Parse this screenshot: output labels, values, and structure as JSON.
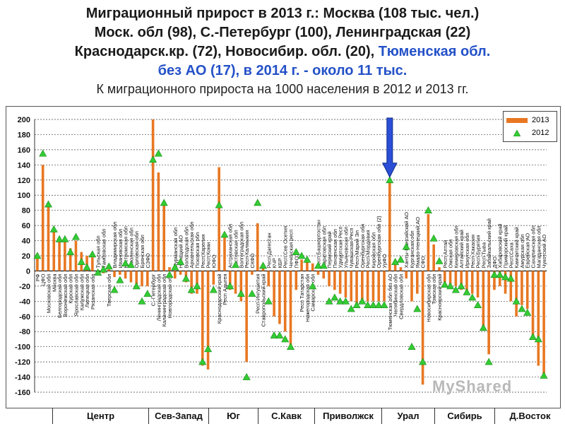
{
  "title": {
    "line1": "Миграционный прирост в 2013 г.: Москва (108 тыс. чел.)",
    "line2": "Моск. обл (98), С.-Петербург (100), Ленинградская (22)",
    "line3_black": "Краснодарск.кр. (72), Новосибир. обл. (20), ",
    "line3_blue": "Тюменская обл.",
    "line4_blue": "без АО (17), в 2014 г. - около 11 тыс.",
    "subtitle": "К миграционного прироста на 1000 населения в 2012 и 2013 гг."
  },
  "legend": {
    "series2013": "2013",
    "series2012": "2012"
  },
  "regions": [
    "Центр",
    "Сев-Запад",
    "Юг",
    "С.Кавк",
    "Приволжск",
    "Урал",
    "Сибирь",
    "Д.Восток"
  ],
  "watermark": "MyShared",
  "colors": {
    "bar": "#E87722",
    "marker": "#33CC33",
    "arrow": "#2A4FD6"
  },
  "chart_data": {
    "type": "bar",
    "ylim": [
      -160,
      200
    ],
    "yticks": [
      200,
      180,
      160,
      140,
      120,
      100,
      80,
      60,
      40,
      20,
      0,
      -20,
      -40,
      -60,
      -80,
      -100,
      -120,
      -140,
      -160
    ],
    "categories": [
      "РФ",
      "ЦФО",
      "Московская обл",
      "Москва",
      "Белгородская обл",
      "Воронежская обл",
      "Курская обл",
      "Ярославская обл",
      "Калужская обл",
      "Липецкая обл",
      "Рязанская обл",
      "Тульская обл",
      "Тамбовская обл",
      "Тверская обл",
      "Владимирская обл",
      "Ивановская обл",
      "Костромская обл",
      "Смоленская обл",
      "Орловская обл",
      "Брянская обл",
      "СЗФО",
      "С.-Петербург",
      "Ленинградская обл",
      "Калининградская обл",
      "Новгородская обл",
      "Мурманская обл",
      "Ненецкий АО",
      "Вологодская обл",
      "Архангельская обл",
      "Псковская обл",
      "Респ Карелия",
      "Респ Коми",
      "ЮФО",
      "Краснодарский край",
      "Респ Адыгея",
      "Астраханская обл",
      "Ростовская обл",
      "Волгоградская обл",
      "Респ Калмыкия",
      "СКФО",
      "Респ Ингушетия",
      "Ставропольский край",
      "Респ Дагестан",
      "КЧР",
      "КБР",
      "Респ Сев Осетия",
      "Чеченская респ",
      "ПФО",
      "Респ Татарстан",
      "Нижегородская обл",
      "Самарская обл",
      "Респ Башкортостан",
      "Саратовская обл",
      "Пермский край",
      "Пензенская обл",
      "Удмуртская Респ",
      "Ульяновская обл",
      "Чувашская Респ",
      "Респ Марий Эл",
      "Оренбургская обл",
      "Респ Мордовия",
      "Кировская обл",
      "Оренбургская обл (2)",
      "УрФО",
      "Тюменская обл без АО",
      "Челябинская обл",
      "Свердловская обл",
      "Ханты-Мансийский АО",
      "Курганская обл",
      "Ямало-Ненецкий АО",
      "СФО",
      "Новосибирская обл",
      "Томская обл",
      "Красноярский край",
      "Респ Алтай",
      "Омская обл",
      "Кемеровская обл",
      "Алтайский край",
      "Иркутская обл",
      "Респ Хакасия",
      "Респ Бурятия",
      "Респ Тыва",
      "Забайкальский край",
      "ДФО",
      "Хабаровский край",
      "Приморский край",
      "Респ Саха",
      "Камчатский край",
      "Амурская обл",
      "Еврейская АО",
      "Сахалинская обл",
      "Магаданская обл",
      "Чукотский АО"
    ],
    "series": [
      {
        "name": "2013",
        "values": [
          20,
          140,
          85,
          52,
          40,
          40,
          30,
          40,
          25,
          20,
          18,
          -5,
          -3,
          2,
          -8,
          -5,
          -10,
          -15,
          -18,
          -20,
          -20,
          200,
          130,
          90,
          5,
          -10,
          -5,
          -15,
          -30,
          -30,
          -125,
          -130,
          -18,
          137,
          45,
          -25,
          -30,
          -40,
          -120,
          -5,
          63,
          5,
          -20,
          -60,
          -70,
          -80,
          -100,
          -25,
          15,
          15,
          10,
          -5,
          -10,
          -20,
          -25,
          -30,
          -35,
          -40,
          -45,
          -40,
          -40,
          -40,
          -40,
          -40,
          120,
          10,
          5,
          -10,
          -40,
          -30,
          -150,
          75,
          35,
          5,
          -15,
          -20,
          -20,
          -25,
          -30,
          -30,
          -35,
          -75,
          -110,
          -25,
          -20,
          -30,
          -40,
          -60,
          -45,
          -50,
          -90,
          -125,
          -140
        ]
      },
      {
        "name": "2012",
        "values": [
          20,
          155,
          88,
          55,
          42,
          42,
          25,
          45,
          12,
          5,
          22,
          -2,
          2,
          6,
          -25,
          -12,
          10,
          8,
          -20,
          -40,
          -30,
          147,
          155,
          90,
          -5,
          5,
          12,
          -10,
          -25,
          -20,
          -120,
          -103,
          -25,
          87,
          48,
          -20,
          8,
          -30,
          -140,
          -30,
          90,
          7,
          -40,
          -85,
          -85,
          -90,
          -100,
          25,
          20,
          15,
          -20,
          7,
          7,
          -40,
          -35,
          -40,
          -40,
          -50,
          -45,
          -40,
          -45,
          -45,
          -45,
          -45,
          120,
          12,
          15,
          32,
          -100,
          -50,
          -120,
          80,
          43,
          13,
          -18,
          -20,
          -25,
          -20,
          -28,
          -35,
          -45,
          -75,
          -120,
          -5,
          -5,
          -8,
          -10,
          -40,
          -50,
          -55,
          -87,
          -90,
          -138
        ]
      }
    ]
  }
}
